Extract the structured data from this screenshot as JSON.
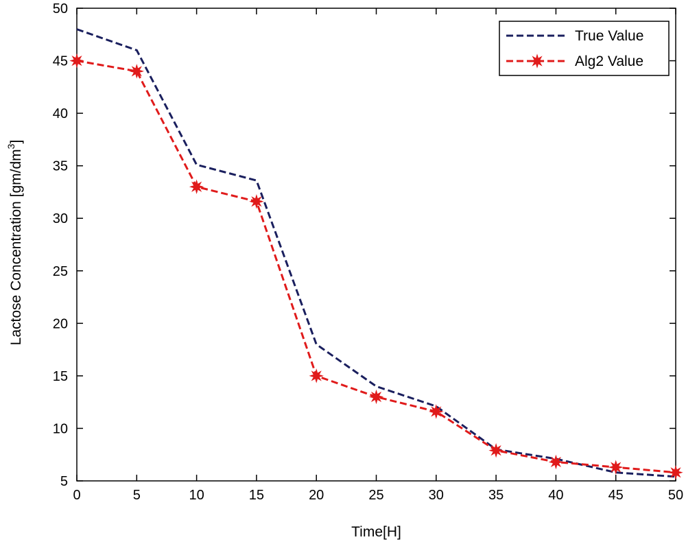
{
  "chart_data": {
    "type": "line",
    "xlabel": "Time[H]",
    "ylabel": "Lactose Concentration [gm/dm",
    "ylabel_sup": "3",
    "ylabel_suffix": "]",
    "xlim": [
      0,
      50
    ],
    "ylim": [
      5,
      50
    ],
    "xticks": [
      0,
      5,
      10,
      15,
      20,
      25,
      30,
      35,
      40,
      45,
      50
    ],
    "yticks": [
      5,
      10,
      15,
      20,
      25,
      30,
      35,
      40,
      45,
      50
    ],
    "grid": false,
    "legend_position": "top-right",
    "x": [
      0,
      5,
      10,
      15,
      20,
      25,
      30,
      35,
      40,
      45,
      50
    ],
    "series": [
      {
        "name": "True Value",
        "color": "#1a1f5e",
        "line_style": "dashed",
        "marker": "none",
        "values": [
          48,
          46,
          35.1,
          33.6,
          18,
          14,
          12.1,
          8,
          7.1,
          5.8,
          5.4
        ]
      },
      {
        "name": "Alg2 Value",
        "color": "#e01b1b",
        "line_style": "dashed",
        "marker": "star",
        "values": [
          45,
          44,
          33,
          31.6,
          15,
          13,
          11.6,
          7.9,
          6.8,
          6.3,
          5.8
        ]
      }
    ]
  }
}
